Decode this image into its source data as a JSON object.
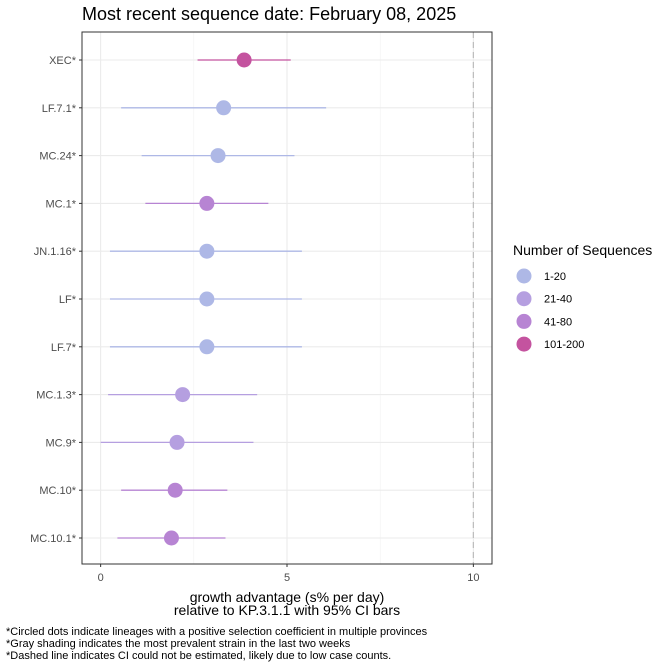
{
  "chart_data": {
    "type": "scatter",
    "title": "Most recent sequence date: February 08, 2025",
    "xlabel_line1": "growth advantage (s% per day)",
    "xlabel_line2": "relative to  KP.3.1.1  with 95% CI bars",
    "xlim": [
      -0.5,
      10.5
    ],
    "xticks": [
      0,
      5,
      10
    ],
    "reference_line_x": 10,
    "grid": true,
    "legend": {
      "title": "Number of Sequences",
      "position": "right",
      "entries": [
        {
          "label": "1-20",
          "color": "#aeb8e6"
        },
        {
          "label": "21-40",
          "color": "#b59fe0"
        },
        {
          "label": "41-80",
          "color": "#b784d3"
        },
        {
          "label": "101-200",
          "color": "#c4539f"
        }
      ]
    },
    "points": [
      {
        "lineage": "XEC*",
        "value": 3.85,
        "lo": 2.6,
        "hi": 5.1,
        "group": "101-200"
      },
      {
        "lineage": "LF.7.1*",
        "value": 3.3,
        "lo": 0.55,
        "hi": 6.05,
        "group": "1-20"
      },
      {
        "lineage": "MC.24*",
        "value": 3.15,
        "lo": 1.1,
        "hi": 5.2,
        "group": "1-20"
      },
      {
        "lineage": "MC.1*",
        "value": 2.85,
        "lo": 1.2,
        "hi": 4.5,
        "group": "41-80"
      },
      {
        "lineage": "JN.1.16*",
        "value": 2.85,
        "lo": 0.25,
        "hi": 5.4,
        "group": "1-20"
      },
      {
        "lineage": "LF*",
        "value": 2.85,
        "lo": 0.25,
        "hi": 5.4,
        "group": "1-20"
      },
      {
        "lineage": "LF.7*",
        "value": 2.85,
        "lo": 0.25,
        "hi": 5.4,
        "group": "1-20"
      },
      {
        "lineage": "MC.1.3*",
        "value": 2.2,
        "lo": 0.2,
        "hi": 4.2,
        "group": "21-40"
      },
      {
        "lineage": "MC.9*",
        "value": 2.05,
        "lo": 0.0,
        "hi": 4.1,
        "group": "21-40"
      },
      {
        "lineage": "MC.10*",
        "value": 2.0,
        "lo": 0.55,
        "hi": 3.4,
        "group": "41-80"
      },
      {
        "lineage": "MC.10.1*",
        "value": 1.9,
        "lo": 0.45,
        "hi": 3.35,
        "group": "41-80"
      }
    ]
  },
  "footnotes": [
    "*Circled dots indicate lineages with a positive selection coefficient in multiple provinces",
    "*Gray shading indicates the most prevalent strain in the last two weeks",
    "*Dashed line indicates CI could not be estimated, likely due to low case counts."
  ]
}
